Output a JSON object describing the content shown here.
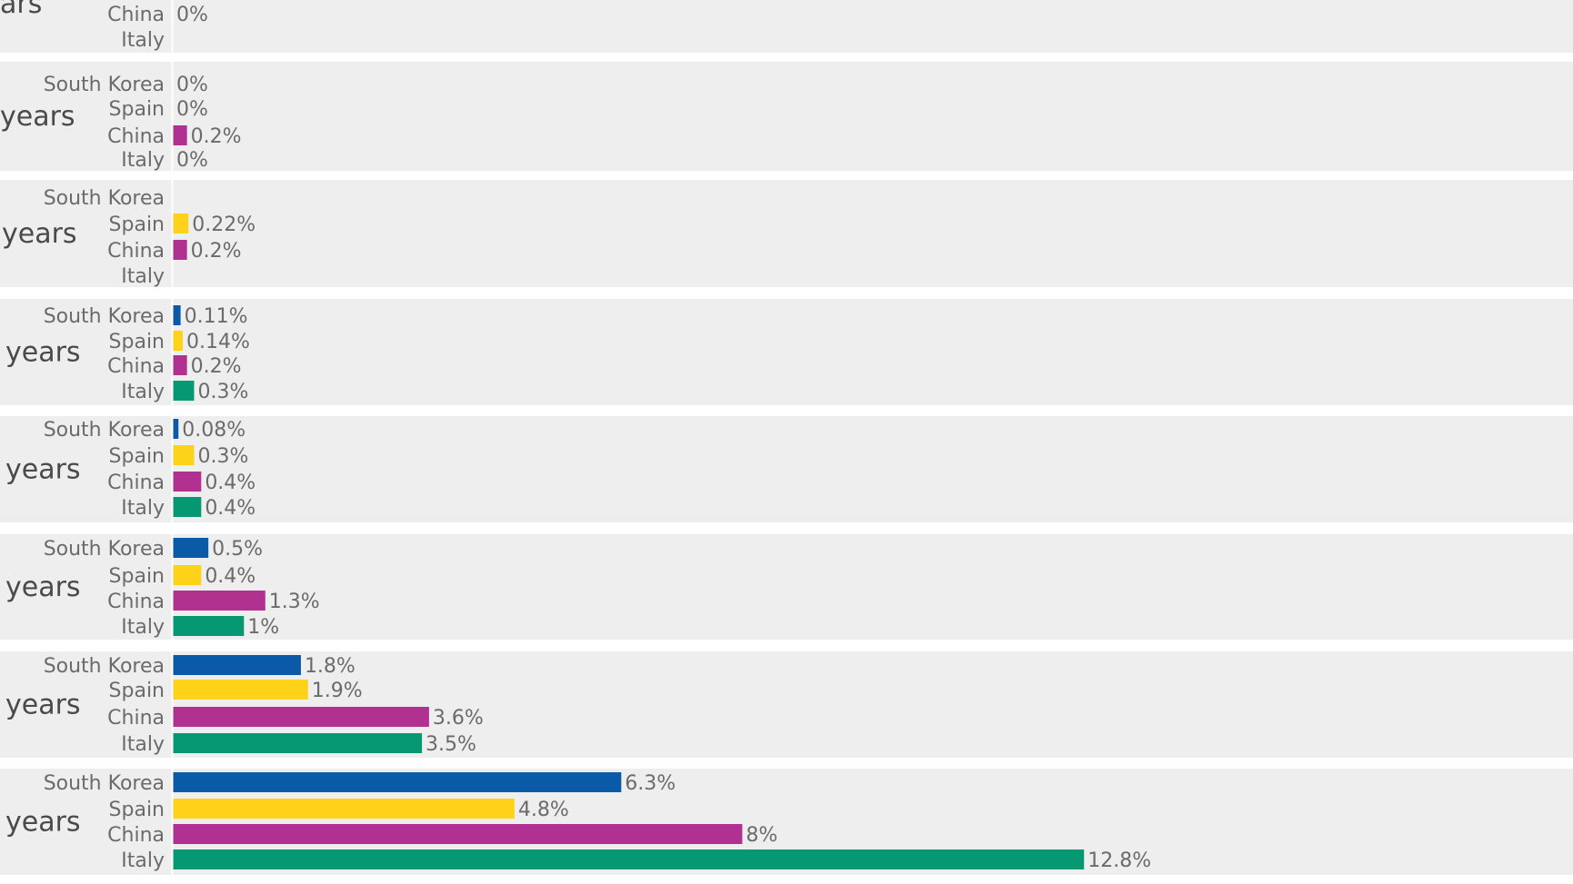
{
  "chart_data": {
    "type": "bar",
    "orientation": "horizontal",
    "colors": {
      "South Korea": "#0b5aa8",
      "Spain": "#ffd21a",
      "China": "#b0318f",
      "Italy": "#069873"
    },
    "groups": [
      {
        "label": "ars",
        "rows": [
          {
            "country": "China",
            "value": 0,
            "text": "0%"
          },
          {
            "country": "Italy",
            "value": null,
            "text": ""
          }
        ]
      },
      {
        "label": "years",
        "rows": [
          {
            "country": "South Korea",
            "value": 0,
            "text": "0%"
          },
          {
            "country": "Spain",
            "value": 0,
            "text": "0%"
          },
          {
            "country": "China",
            "value": 0.2,
            "text": "0.2%"
          },
          {
            "country": "Italy",
            "value": 0,
            "text": "0%"
          }
        ]
      },
      {
        "label": "years",
        "rows": [
          {
            "country": "South Korea",
            "value": null,
            "text": ""
          },
          {
            "country": "Spain",
            "value": 0.22,
            "text": "0.22%"
          },
          {
            "country": "China",
            "value": 0.2,
            "text": "0.2%"
          },
          {
            "country": "Italy",
            "value": null,
            "text": ""
          }
        ]
      },
      {
        "label": "years",
        "rows": [
          {
            "country": "South Korea",
            "value": 0.11,
            "text": "0.11%"
          },
          {
            "country": "Spain",
            "value": 0.14,
            "text": "0.14%"
          },
          {
            "country": "China",
            "value": 0.2,
            "text": "0.2%"
          },
          {
            "country": "Italy",
            "value": 0.3,
            "text": "0.3%"
          }
        ]
      },
      {
        "label": "years",
        "rows": [
          {
            "country": "South Korea",
            "value": 0.08,
            "text": "0.08%"
          },
          {
            "country": "Spain",
            "value": 0.3,
            "text": "0.3%"
          },
          {
            "country": "China",
            "value": 0.4,
            "text": "0.4%"
          },
          {
            "country": "Italy",
            "value": 0.4,
            "text": "0.4%"
          }
        ]
      },
      {
        "label": "years",
        "rows": [
          {
            "country": "South Korea",
            "value": 0.5,
            "text": "0.5%"
          },
          {
            "country": "Spain",
            "value": 0.4,
            "text": "0.4%"
          },
          {
            "country": "China",
            "value": 1.3,
            "text": "1.3%"
          },
          {
            "country": "Italy",
            "value": 1,
            "text": "1%"
          }
        ]
      },
      {
        "label": "years",
        "rows": [
          {
            "country": "South Korea",
            "value": 1.8,
            "text": "1.8%"
          },
          {
            "country": "Spain",
            "value": 1.9,
            "text": "1.9%"
          },
          {
            "country": "China",
            "value": 3.6,
            "text": "3.6%"
          },
          {
            "country": "Italy",
            "value": 3.5,
            "text": "3.5%"
          }
        ]
      },
      {
        "label": "years",
        "rows": [
          {
            "country": "South Korea",
            "value": 6.3,
            "text": "6.3%"
          },
          {
            "country": "Spain",
            "value": 4.8,
            "text": "4.8%"
          },
          {
            "country": "China",
            "value": 8,
            "text": "8%"
          },
          {
            "country": "Italy",
            "value": 12.8,
            "text": "12.8%"
          }
        ]
      }
    ]
  }
}
